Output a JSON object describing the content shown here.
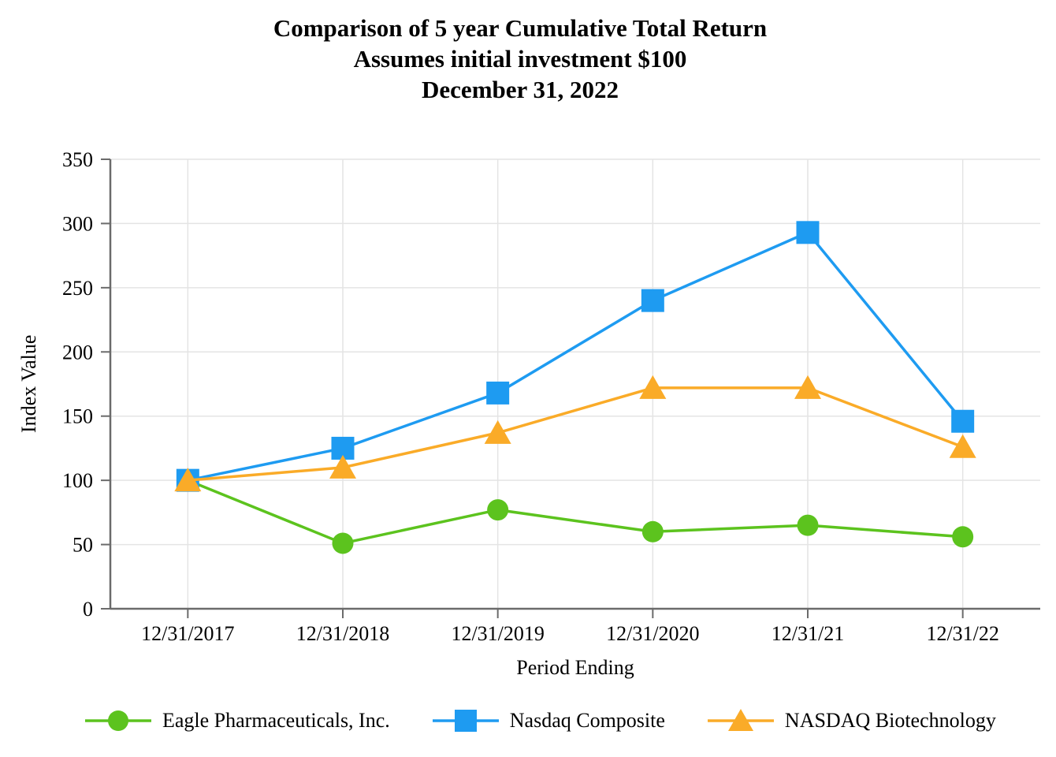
{
  "title": {
    "line1": "Comparison of 5 year Cumulative Total Return",
    "line2": "Assumes initial investment $100",
    "line3": "December 31, 2022"
  },
  "chart_data": {
    "type": "line",
    "categories": [
      "12/31/2017",
      "12/31/2018",
      "12/31/2019",
      "12/31/2020",
      "12/31/21",
      "12/31/22"
    ],
    "series": [
      {
        "name": "Eagle Pharmaceuticals, Inc.",
        "marker": "circle",
        "color": "#5CC31E",
        "values": [
          100,
          51,
          77,
          60,
          65,
          56
        ]
      },
      {
        "name": "Nasdaq Composite",
        "marker": "square",
        "color": "#1E9BF1",
        "values": [
          100,
          125,
          168,
          240,
          293,
          146
        ]
      },
      {
        "name": "NASDAQ Biotechnology",
        "marker": "triangle",
        "color": "#FAAB28",
        "values": [
          100,
          110,
          137,
          172,
          172,
          126
        ]
      }
    ],
    "xlabel": "Period Ending",
    "ylabel": "Index Value",
    "ylim": [
      0,
      350
    ],
    "y_ticks": [
      0,
      50,
      100,
      150,
      200,
      250,
      300,
      350
    ],
    "grid": true,
    "legend_position": "bottom"
  },
  "colors": {
    "gridline": "#E4E4E4",
    "axis": "#6B6B6B",
    "text": "#000000",
    "background": "#FFFFFF"
  }
}
